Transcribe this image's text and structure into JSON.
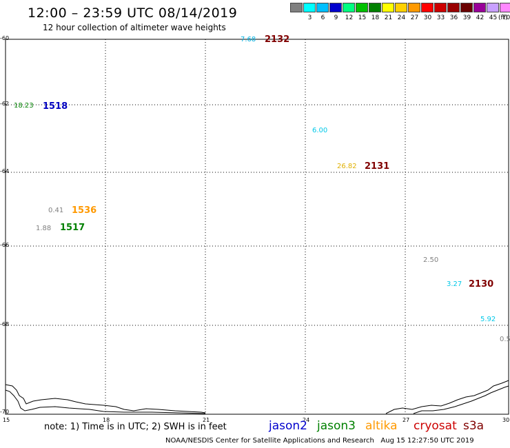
{
  "header": {
    "title": "12:00 – 23:59 UTC 08/14/2019",
    "subtitle": "12 hour collection of altimeter wave heights"
  },
  "color_scale": {
    "unit": "(ft)",
    "entries": [
      {
        "label": "",
        "color": "#808080"
      },
      {
        "label": "3",
        "color": "#00ffff"
      },
      {
        "label": "6",
        "color": "#00bfff"
      },
      {
        "label": "9",
        "color": "#0000cd"
      },
      {
        "label": "12",
        "color": "#00ff80"
      },
      {
        "label": "15",
        "color": "#00c000"
      },
      {
        "label": "18",
        "color": "#008000"
      },
      {
        "label": "21",
        "color": "#ffff00"
      },
      {
        "label": "24",
        "color": "#ffd000"
      },
      {
        "label": "27",
        "color": "#ff9900"
      },
      {
        "label": "30",
        "color": "#ff0000"
      },
      {
        "label": "33",
        "color": "#cc0000"
      },
      {
        "label": "36",
        "color": "#990000"
      },
      {
        "label": "39",
        "color": "#6a0000"
      },
      {
        "label": "42",
        "color": "#990099"
      },
      {
        "label": "45",
        "color": "#c8a0ff"
      },
      {
        "label": "70",
        "color": "#ff88ff"
      },
      {
        "label": "",
        "color": "#000000"
      }
    ]
  },
  "axes": {
    "lat_labels": [
      "-60",
      "-62",
      "-64",
      "-66",
      "-68",
      "-70"
    ],
    "lon_labels": [
      "15",
      "18",
      "21",
      "24",
      "27",
      "30"
    ]
  },
  "observations": [
    {
      "value": "7.68",
      "color": "#00b0e0"
    },
    {
      "value": "18.23",
      "color": "#008000"
    },
    {
      "value": "6.00",
      "color": "#00c8e8"
    },
    {
      "value": "26.82",
      "color": "#e0b000"
    },
    {
      "value": "0.41",
      "color": "#808080"
    },
    {
      "value": "1.88",
      "color": "#808080"
    },
    {
      "value": "2.50",
      "color": "#808080"
    },
    {
      "value": "3.27",
      "color": "#00c8e8"
    },
    {
      "value": "5.92",
      "color": "#00c8e8"
    },
    {
      "value": "0.5",
      "color": "#808080"
    }
  ],
  "pass_times": [
    {
      "time": "2132",
      "color": "#800000"
    },
    {
      "time": "1518",
      "color": "#0000c0"
    },
    {
      "time": "2131",
      "color": "#800000"
    },
    {
      "time": "1536",
      "color": "#ff9900"
    },
    {
      "time": "1517",
      "color": "#008000"
    },
    {
      "time": "2130",
      "color": "#800000"
    }
  ],
  "footer": {
    "note": "note: 1) Time is in UTC; 2) SWH is in feet",
    "credit": "NOAA/NESDIS Center for Satellite Applications and Research",
    "timestamp": "Aug 15 12:27:50 UTC 2019",
    "satellites": [
      {
        "name": "jason2",
        "color": "#0000cd"
      },
      {
        "name": "jason3",
        "color": "#008000"
      },
      {
        "name": "altika",
        "color": "#ff9900"
      },
      {
        "name": "cryosat",
        "color": "#cc0000"
      },
      {
        "name": "s3a",
        "color": "#800000"
      }
    ]
  }
}
